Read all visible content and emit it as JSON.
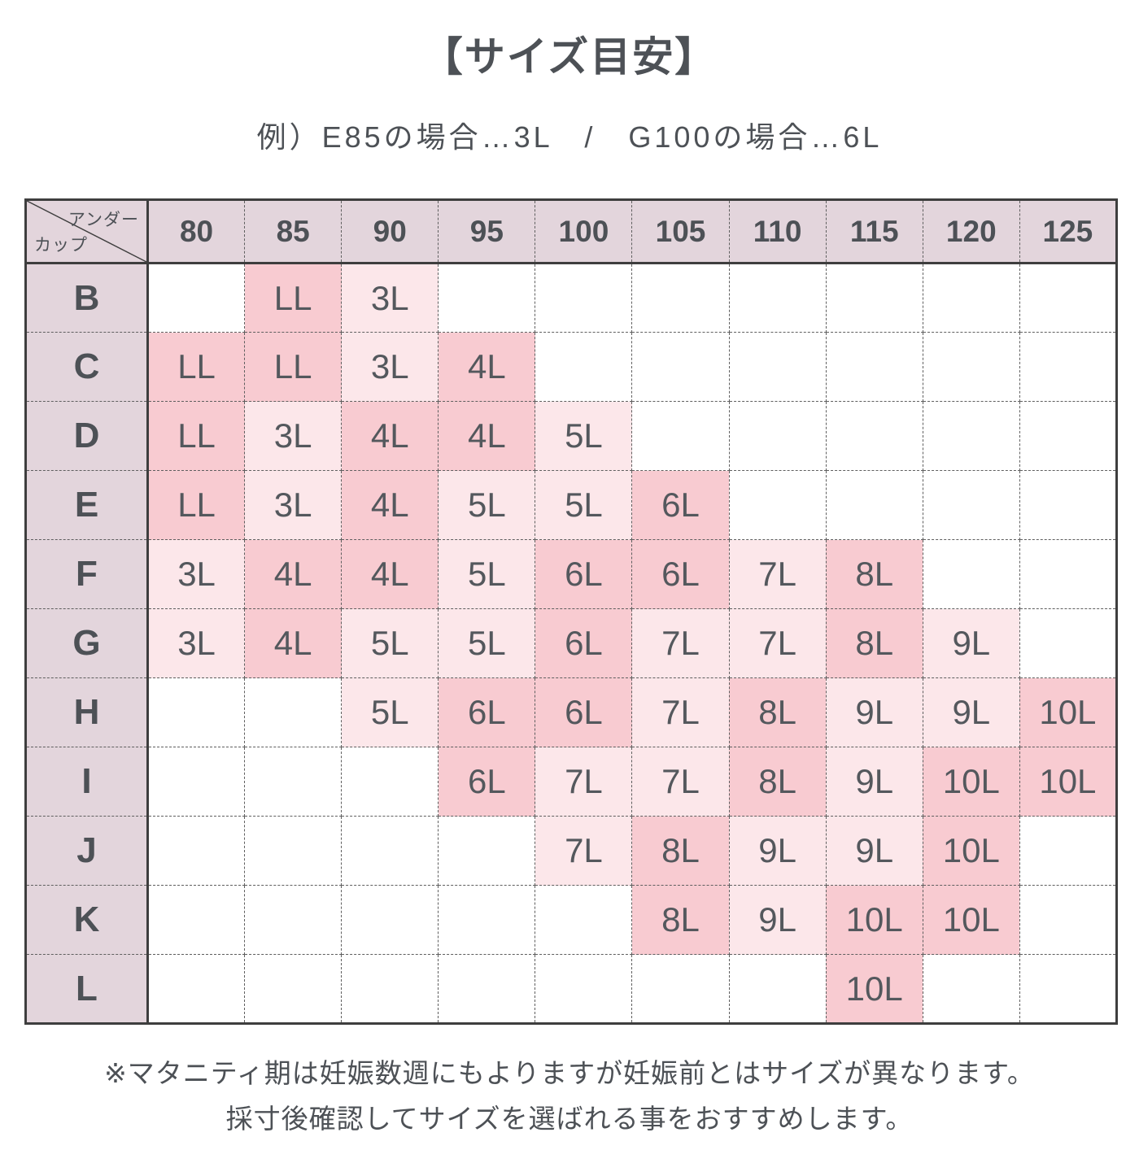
{
  "title": "【サイズ目安】",
  "subtitle": "例）E85の場合…3L　/　G100の場合…6L",
  "table": {
    "corner": {
      "top_label": "アンダー",
      "bottom_label": "カップ"
    },
    "underbust_sizes": [
      "80",
      "85",
      "90",
      "95",
      "100",
      "105",
      "110",
      "115",
      "120",
      "125"
    ],
    "cup_rows": [
      {
        "cup": "B",
        "cells": [
          "",
          "LL",
          "3L",
          "",
          "",
          "",
          "",
          "",
          "",
          ""
        ]
      },
      {
        "cup": "C",
        "cells": [
          "LL",
          "LL",
          "3L",
          "4L",
          "",
          "",
          "",
          "",
          "",
          ""
        ]
      },
      {
        "cup": "D",
        "cells": [
          "LL",
          "3L",
          "4L",
          "4L",
          "5L",
          "",
          "",
          "",
          "",
          ""
        ]
      },
      {
        "cup": "E",
        "cells": [
          "LL",
          "3L",
          "4L",
          "5L",
          "5L",
          "6L",
          "",
          "",
          "",
          ""
        ]
      },
      {
        "cup": "F",
        "cells": [
          "3L",
          "4L",
          "4L",
          "5L",
          "6L",
          "6L",
          "7L",
          "8L",
          "",
          ""
        ]
      },
      {
        "cup": "G",
        "cells": [
          "3L",
          "4L",
          "5L",
          "5L",
          "6L",
          "7L",
          "7L",
          "8L",
          "9L",
          ""
        ]
      },
      {
        "cup": "H",
        "cells": [
          "",
          "",
          "5L",
          "6L",
          "6L",
          "7L",
          "8L",
          "9L",
          "9L",
          "10L"
        ]
      },
      {
        "cup": "I",
        "cells": [
          "",
          "",
          "",
          "6L",
          "7L",
          "7L",
          "8L",
          "9L",
          "10L",
          "10L"
        ]
      },
      {
        "cup": "J",
        "cells": [
          "",
          "",
          "",
          "",
          "7L",
          "8L",
          "9L",
          "9L",
          "10L",
          ""
        ]
      },
      {
        "cup": "K",
        "cells": [
          "",
          "",
          "",
          "",
          "",
          "8L",
          "9L",
          "10L",
          "10L",
          ""
        ]
      },
      {
        "cup": "L",
        "cells": [
          "",
          "",
          "",
          "",
          "",
          "",
          "",
          "10L",
          "",
          ""
        ]
      }
    ]
  },
  "shade_rule": {
    "strong_values": [
      "LL",
      "4L",
      "6L",
      "8L",
      "10L"
    ],
    "light_values": [
      "3L",
      "5L",
      "7L",
      "9L"
    ]
  },
  "colors": {
    "header_bg": "#e3d5dc",
    "shade_strong": "#f8cbd1",
    "shade_light": "#fce7ea",
    "border_dark": "#3e3e3e",
    "border_dashed": "#5f5f5f",
    "text_dark": "#4d5156",
    "text_cell": "#54585d"
  },
  "notes": [
    "※マタニティ期は妊娠数週にもよりますが妊娠前とはサイズが異なります。",
    "採寸後確認してサイズを選ばれる事をおすすめします。"
  ]
}
